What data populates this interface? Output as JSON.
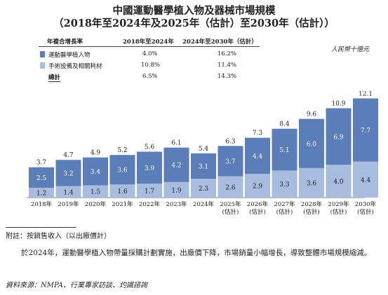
{
  "title": {
    "line1": "中國運動醫學植入物及器械市場規模",
    "line2": "（2018年至2024年及2025年（估計）至2030年（估計））"
  },
  "unit": "人民幣十億元",
  "cagr_table": {
    "header": [
      "年複合增長率",
      "2018年至2024年",
      "2024年至2030年（估計）"
    ],
    "rows": [
      {
        "label": "運動醫學植入物",
        "v1": "4.0%",
        "v2": "16.2%",
        "color": "#5b7db8"
      },
      {
        "label": "手術設備及相關耗材",
        "v1": "10.8%",
        "v2": "11.4%",
        "color": "#a8bcdf"
      }
    ],
    "total": {
      "label": "總計",
      "v1": "6.5%",
      "v2": "14.3%"
    }
  },
  "chart_data": {
    "type": "bar",
    "stacked": true,
    "categories": [
      "2018年",
      "2019年",
      "2020年",
      "2021年",
      "2022年",
      "2023年",
      "2024年",
      "2025年\n(估計)",
      "2026年\n(估計)",
      "2027年\n(估計)",
      "2028年\n(估計)",
      "2029年\n(估計)",
      "2030年\n(估計)"
    ],
    "series": [
      {
        "name": "手術設備及相關耗材",
        "values": [
          1.2,
          1.4,
          1.5,
          1.6,
          1.7,
          1.9,
          2.3,
          2.6,
          2.9,
          3.3,
          3.6,
          4.0,
          4.4
        ],
        "color": "#a8bcdf"
      },
      {
        "name": "運動醫學植入物",
        "values": [
          2.5,
          3.2,
          3.4,
          3.6,
          3.9,
          4.2,
          3.1,
          3.7,
          4.4,
          5.1,
          6.0,
          6.9,
          7.7
        ],
        "color": "#5b7db8"
      }
    ],
    "totals": [
      "3.7",
      "4.7",
      "4.9",
      "5.2",
      "5.6",
      "6.1",
      "5.4",
      "6.3",
      "7.3",
      "8.4",
      "9.6",
      "10.9",
      "12.1"
    ],
    "ylim": [
      0,
      13
    ],
    "grid": false,
    "legend": "top-left"
  },
  "footnote": "附註：按銷售收入（以出廠價計）",
  "paragraph": "於2024年，運動醫學植入物帶量採購計劃實施，出廠價下降，市場銷量小幅增長，導致整體市場規模縮減。",
  "source": "資料來源：NMPA、行業專家訪談、灼識諮詢"
}
